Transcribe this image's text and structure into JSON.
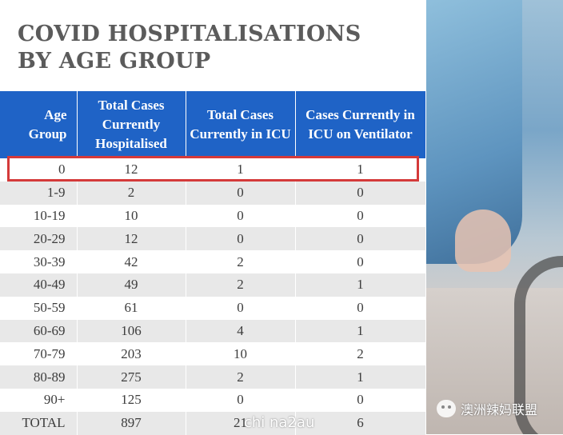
{
  "title": {
    "line1": "COVID HOSPITALISATIONS",
    "line2": "BY AGE GROUP"
  },
  "table": {
    "headers": [
      "Age Group",
      "Total Cases Currently Hospitalised",
      "Total Cases Currently in ICU",
      "Cases Currently in ICU on Ventilator"
    ],
    "rows": [
      [
        "0",
        "12",
        "1",
        "1"
      ],
      [
        "1-9",
        "2",
        "0",
        "0"
      ],
      [
        "10-19",
        "10",
        "0",
        "0"
      ],
      [
        "20-29",
        "12",
        "0",
        "0"
      ],
      [
        "30-39",
        "42",
        "2",
        "0"
      ],
      [
        "40-49",
        "49",
        "2",
        "1"
      ],
      [
        "50-59",
        "61",
        "0",
        "0"
      ],
      [
        "60-69",
        "106",
        "4",
        "1"
      ],
      [
        "70-79",
        "203",
        "10",
        "2"
      ],
      [
        "80-89",
        "275",
        "2",
        "1"
      ],
      [
        "90+",
        "125",
        "0",
        "0"
      ],
      [
        "TOTAL",
        "897",
        "21",
        "6"
      ]
    ],
    "highlighted_row": "0"
  },
  "watermarks": {
    "center": "chi na2au",
    "right": "澳洲辣妈联盟"
  },
  "colors": {
    "header_bg": "#1f63c6",
    "highlight_border": "#d43a3a",
    "alt_row": "#e8e8e8"
  }
}
